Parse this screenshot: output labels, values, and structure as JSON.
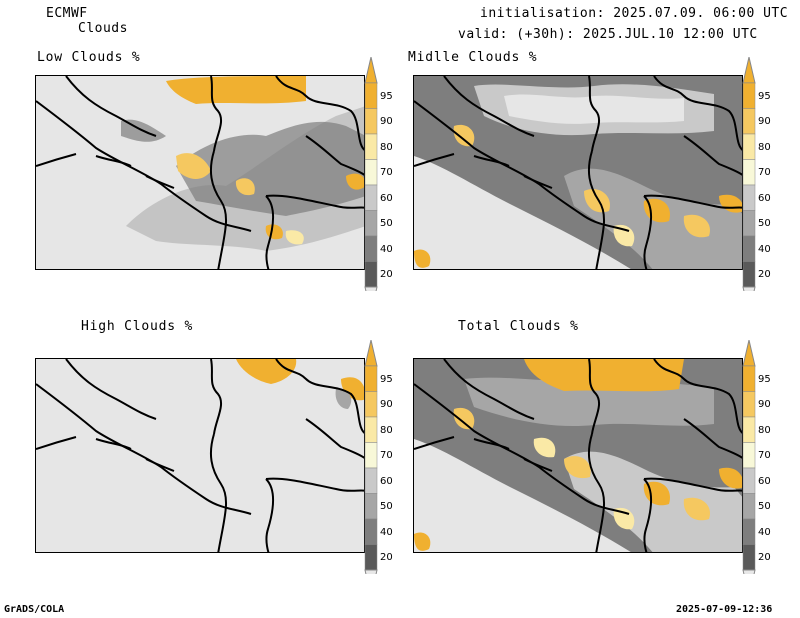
{
  "header": {
    "model": "ECMWF",
    "product": "Clouds",
    "init_line": "initialisation: 2025.07.09. 06:00 UTC",
    "valid_line": "valid: (+30h): 2025.JUL.10 12:00 UTC"
  },
  "panels": [
    {
      "key": "low",
      "title": "Low Clouds %"
    },
    {
      "key": "mid",
      "title": "Midlle Clouds %"
    },
    {
      "key": "high",
      "title": "High Clouds %"
    },
    {
      "key": "total",
      "title": "Total Clouds %"
    }
  ],
  "colorbar": {
    "ticks": [
      "95",
      "90",
      "80",
      "70",
      "60",
      "50",
      "40",
      "20"
    ],
    "colors": {
      "top_arrow": "#f0b030",
      "c95": "#f0b030",
      "c90": "#f5c860",
      "c80": "#fae9a6",
      "c70": "#f8f8d8",
      "c60": "#c9c9c9",
      "c50": "#a6a6a6",
      "c40": "#7e7e7e",
      "c20": "#5a5a5a",
      "bottom_arrow": "#e8e8e8"
    }
  },
  "footer": {
    "left": "GrADS/COLA",
    "right": "2025-07-09-12:36"
  }
}
